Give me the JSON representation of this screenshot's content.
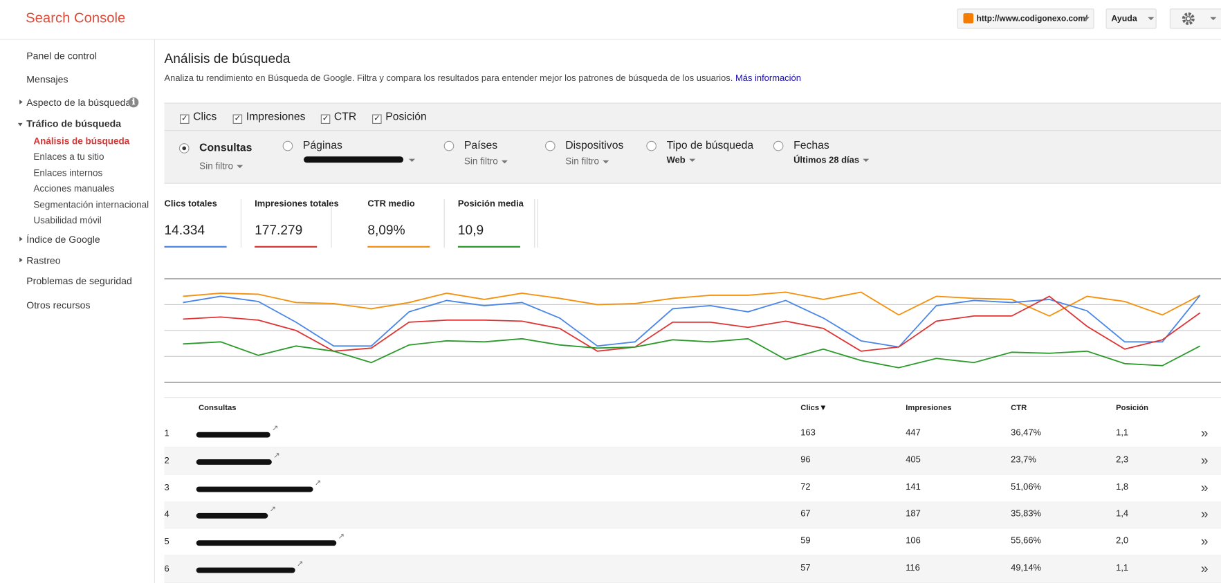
{
  "header": {
    "title": "Search Console",
    "site": "http://www.codigonexo.com/",
    "help": "Ayuda"
  },
  "sidebar": {
    "items": [
      "Panel de control",
      "Mensajes",
      "Aspecto de la búsqueda",
      "Tráfico de búsqueda",
      "Análisis de búsqueda",
      "Enlaces a tu sitio",
      "Enlaces internos",
      "Acciones manuales",
      "Segmentación internacional",
      "Usabilidad móvil",
      "Índice de Google",
      "Rastreo",
      "Problemas de seguridad",
      "Otros recursos"
    ]
  },
  "page": {
    "title": "Análisis de búsqueda",
    "description": "Analiza tu rendimiento en Búsqueda de Google. Filtra y compara los resultados para entender mejor los patrones de búsqueda de los usuarios.",
    "link": "Más información"
  },
  "metrics": [
    "Clics",
    "Impresiones",
    "CTR",
    "Posición"
  ],
  "dimensions": [
    {
      "label": "Consultas",
      "filter": "Sin filtro"
    },
    {
      "label": "Páginas"
    },
    {
      "label": "Países",
      "filter": "Sin filtro"
    },
    {
      "label": "Dispositivos",
      "filter": "Sin filtro"
    },
    {
      "label": "Tipo de búsqueda",
      "filter": "Web"
    },
    {
      "label": "Fechas",
      "filter": "Últimos 28 días"
    }
  ],
  "chart_data": {
    "type": "line",
    "ylim": [
      0,
      100
    ],
    "yticks": [
      0,
      25,
      50,
      75,
      100
    ],
    "grid": true,
    "series": [
      {
        "name": "Clics totales",
        "total": "14.334",
        "color": "#4a86e8",
        "values": [
          77,
          83,
          78,
          58,
          35,
          35,
          68,
          79,
          74,
          77,
          62,
          35,
          39,
          71,
          74,
          68,
          79,
          62,
          40,
          34,
          74,
          79,
          77,
          80,
          69,
          39,
          39,
          84
        ]
      },
      {
        "name": "Impresiones totales",
        "total": "177.279",
        "color": "#dd3333",
        "values": [
          61,
          63,
          60,
          50,
          30,
          33,
          58,
          60,
          60,
          59,
          52,
          30,
          34,
          58,
          58,
          53,
          59,
          52,
          30,
          34,
          59,
          64,
          64,
          83,
          54,
          32,
          41,
          67
        ]
      },
      {
        "name": "CTR medio",
        "total": "8,09%",
        "color": "#f4900c",
        "values": [
          83,
          86,
          85,
          77,
          76,
          71,
          77,
          86,
          80,
          86,
          81,
          75,
          76,
          81,
          84,
          84,
          87,
          80,
          87,
          65,
          83,
          81,
          80,
          64,
          83,
          78,
          65,
          84
        ]
      },
      {
        "name": "Posición media",
        "total": "10,9",
        "color": "#2a9a2a",
        "values": [
          37,
          39,
          26,
          35,
          30,
          19,
          36,
          40,
          39,
          42,
          36,
          33,
          34,
          41,
          39,
          42,
          22,
          32,
          21,
          14,
          23,
          19,
          29,
          28,
          30,
          18,
          16,
          35
        ]
      }
    ]
  },
  "table": {
    "columns": [
      "Consultas",
      "Clics",
      "Impresiones",
      "CTR",
      "Posición"
    ],
    "rows": [
      [
        1,
        163,
        447,
        "36,47%",
        "1,1"
      ],
      [
        2,
        96,
        405,
        "23,7%",
        "2,3"
      ],
      [
        3,
        72,
        141,
        "51,06%",
        "1,8"
      ],
      [
        4,
        67,
        187,
        "35,83%",
        "1,4"
      ],
      [
        5,
        59,
        106,
        "55,66%",
        "2,0"
      ],
      [
        6,
        57,
        116,
        "49,14%",
        "1,1"
      ]
    ]
  }
}
